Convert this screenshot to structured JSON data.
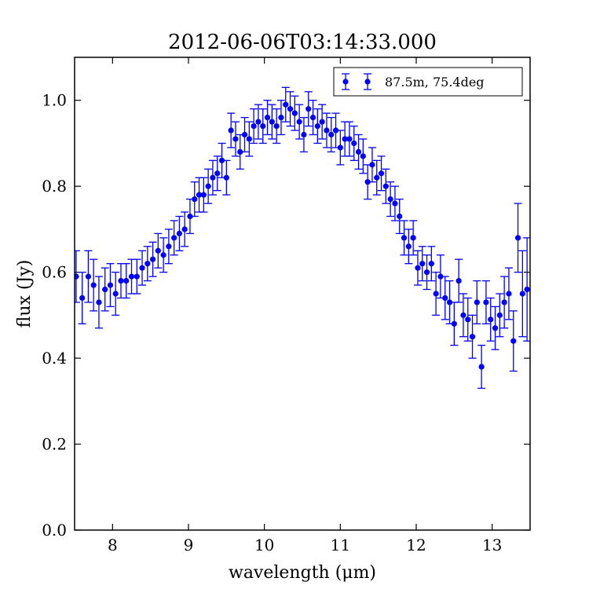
{
  "chart_data": {
    "type": "scatter",
    "title": "2012-06-06T03:14:33.000",
    "xlabel": "wavelength (μm)",
    "ylabel": "flux (Jy)",
    "xlim": [
      7.5,
      13.5
    ],
    "ylim": [
      0.0,
      1.1
    ],
    "xticks": [
      8,
      9,
      10,
      11,
      12,
      13
    ],
    "xtick_labels": [
      "8",
      "9",
      "10",
      "11",
      "12",
      "13"
    ],
    "yticks": [
      0.0,
      0.2,
      0.4,
      0.6,
      0.8,
      1.0
    ],
    "ytick_labels": [
      "0.0",
      "0.2",
      "0.4",
      "0.6",
      "0.8",
      "1.0"
    ],
    "grid": false,
    "legend_position": "top-right",
    "series": [
      {
        "name": "87.5m, 75.4deg",
        "color": "#0000ff",
        "marker": "circle",
        "error_bars": true,
        "x": [
          7.52,
          7.6,
          7.68,
          7.75,
          7.82,
          7.9,
          7.97,
          8.04,
          8.11,
          8.18,
          8.25,
          8.32,
          8.39,
          8.46,
          8.53,
          8.6,
          8.67,
          8.74,
          8.81,
          8.88,
          8.95,
          9.02,
          9.08,
          9.14,
          9.2,
          9.26,
          9.32,
          9.38,
          9.44,
          9.5,
          9.56,
          9.62,
          9.68,
          9.74,
          9.8,
          9.86,
          9.92,
          9.98,
          10.04,
          10.1,
          10.16,
          10.22,
          10.28,
          10.34,
          10.4,
          10.46,
          10.52,
          10.58,
          10.64,
          10.7,
          10.76,
          10.82,
          10.88,
          10.94,
          11.0,
          11.06,
          11.12,
          11.18,
          11.24,
          11.3,
          11.36,
          11.42,
          11.48,
          11.54,
          11.6,
          11.66,
          11.72,
          11.78,
          11.84,
          11.9,
          11.96,
          12.02,
          12.08,
          12.14,
          12.2,
          12.26,
          12.32,
          12.38,
          12.44,
          12.5,
          12.56,
          12.62,
          12.68,
          12.74,
          12.8,
          12.86,
          12.92,
          12.98,
          13.04,
          13.1,
          13.16,
          13.22,
          13.28,
          13.34,
          13.4,
          13.46
        ],
        "y": [
          0.59,
          0.54,
          0.59,
          0.57,
          0.53,
          0.56,
          0.57,
          0.55,
          0.58,
          0.58,
          0.59,
          0.59,
          0.61,
          0.62,
          0.63,
          0.65,
          0.64,
          0.66,
          0.68,
          0.69,
          0.7,
          0.73,
          0.77,
          0.78,
          0.78,
          0.8,
          0.82,
          0.83,
          0.86,
          0.82,
          0.93,
          0.91,
          0.88,
          0.92,
          0.91,
          0.94,
          0.95,
          0.94,
          0.96,
          0.95,
          0.94,
          0.96,
          0.99,
          0.98,
          0.97,
          0.95,
          0.92,
          0.98,
          0.96,
          0.94,
          0.95,
          0.93,
          0.92,
          0.93,
          0.89,
          0.91,
          0.91,
          0.9,
          0.88,
          0.87,
          0.81,
          0.85,
          0.82,
          0.83,
          0.8,
          0.77,
          0.76,
          0.73,
          0.68,
          0.66,
          0.68,
          0.61,
          0.62,
          0.6,
          0.62,
          0.55,
          0.59,
          0.54,
          0.53,
          0.48,
          0.58,
          0.5,
          0.49,
          0.45,
          0.53,
          0.38,
          0.53,
          0.49,
          0.47,
          0.5,
          0.53,
          0.55,
          0.44,
          0.68,
          0.55,
          0.56
        ],
        "yerr": [
          0.06,
          0.06,
          0.06,
          0.06,
          0.06,
          0.05,
          0.05,
          0.05,
          0.04,
          0.04,
          0.04,
          0.04,
          0.04,
          0.04,
          0.04,
          0.04,
          0.04,
          0.04,
          0.04,
          0.04,
          0.04,
          0.04,
          0.04,
          0.04,
          0.04,
          0.04,
          0.04,
          0.04,
          0.04,
          0.04,
          0.04,
          0.04,
          0.04,
          0.04,
          0.04,
          0.04,
          0.04,
          0.04,
          0.04,
          0.04,
          0.04,
          0.04,
          0.04,
          0.04,
          0.04,
          0.04,
          0.04,
          0.04,
          0.04,
          0.04,
          0.04,
          0.04,
          0.04,
          0.04,
          0.04,
          0.04,
          0.04,
          0.04,
          0.04,
          0.04,
          0.04,
          0.04,
          0.04,
          0.04,
          0.04,
          0.04,
          0.04,
          0.04,
          0.04,
          0.04,
          0.04,
          0.04,
          0.04,
          0.04,
          0.04,
          0.05,
          0.05,
          0.05,
          0.05,
          0.05,
          0.05,
          0.05,
          0.05,
          0.05,
          0.05,
          0.05,
          0.05,
          0.05,
          0.05,
          0.05,
          0.06,
          0.06,
          0.07,
          0.08,
          0.1,
          0.12
        ]
      }
    ]
  }
}
